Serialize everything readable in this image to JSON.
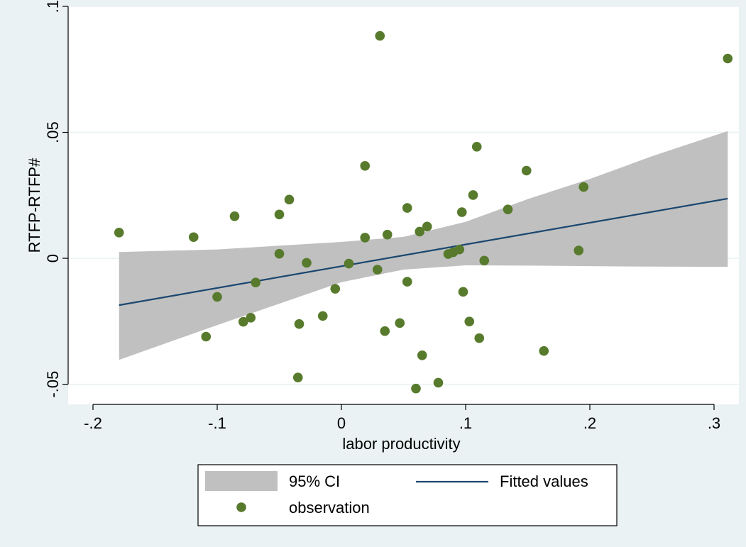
{
  "chart_data": {
    "type": "scatter",
    "title": "",
    "xlabel": "labor productivity",
    "ylabel": "RTFP-RTFP#",
    "xlim": [
      -0.22,
      0.32
    ],
    "ylim": [
      -0.058,
      0.1
    ],
    "xticks": [
      {
        "value": -0.2,
        "label": "-.2"
      },
      {
        "value": -0.1,
        "label": "-.1"
      },
      {
        "value": 0,
        "label": "0"
      },
      {
        "value": 0.1,
        "label": ".1"
      },
      {
        "value": 0.2,
        "label": ".2"
      },
      {
        "value": 0.3,
        "label": ".3"
      }
    ],
    "yticks": [
      {
        "value": -0.05,
        "label": "-.05"
      },
      {
        "value": 0,
        "label": "0"
      },
      {
        "value": 0.05,
        "label": ".05"
      },
      {
        "value": 0.1,
        "label": ".1"
      }
    ],
    "grid": "horizontal",
    "legend": {
      "placement": "bottom",
      "entries": [
        {
          "key": "ci",
          "label": "95% CI"
        },
        {
          "key": "fit",
          "label": "Fitted values"
        },
        {
          "key": "obs",
          "label": "observation"
        }
      ]
    },
    "colors": {
      "outer_background": "#eaf2f3",
      "plot_background": "#ffffff",
      "gridline": "#eaf2f3",
      "points": "#577a2c",
      "fit_line": "#1a476f",
      "ci_band": "#c0c0c0"
    },
    "fit": {
      "x": [
        -0.179,
        0.311
      ],
      "y": [
        -0.0186,
        0.0237
      ]
    },
    "ci": {
      "x": [
        -0.179,
        -0.1,
        0.0,
        0.05,
        0.1,
        0.15,
        0.2,
        0.25,
        0.311
      ],
      "lower": [
        -0.0403,
        -0.0265,
        -0.0095,
        -0.0045,
        -0.0028,
        -0.0029,
        -0.0031,
        -0.0033,
        -0.0034
      ],
      "upper": [
        0.0025,
        0.0035,
        0.0065,
        0.0085,
        0.0145,
        0.0235,
        0.0315,
        0.0405,
        0.0505
      ]
    },
    "points": [
      {
        "x": -0.179,
        "y": 0.0102
      },
      {
        "x": -0.119,
        "y": 0.0084
      },
      {
        "x": -0.109,
        "y": -0.0311
      },
      {
        "x": -0.1,
        "y": -0.0153
      },
      {
        "x": -0.086,
        "y": 0.0167
      },
      {
        "x": -0.079,
        "y": -0.0252
      },
      {
        "x": -0.073,
        "y": -0.0236
      },
      {
        "x": -0.069,
        "y": -0.0096
      },
      {
        "x": -0.05,
        "y": 0.0174
      },
      {
        "x": -0.05,
        "y": 0.0018
      },
      {
        "x": -0.042,
        "y": 0.0233
      },
      {
        "x": -0.035,
        "y": -0.0473
      },
      {
        "x": -0.034,
        "y": -0.0261
      },
      {
        "x": -0.028,
        "y": -0.0018
      },
      {
        "x": -0.015,
        "y": -0.0229
      },
      {
        "x": -0.005,
        "y": -0.0121
      },
      {
        "x": 0.006,
        "y": -0.0021
      },
      {
        "x": 0.019,
        "y": 0.0367
      },
      {
        "x": 0.019,
        "y": 0.0082
      },
      {
        "x": 0.029,
        "y": -0.0045
      },
      {
        "x": 0.031,
        "y": 0.0883
      },
      {
        "x": 0.035,
        "y": -0.0289
      },
      {
        "x": 0.037,
        "y": 0.0094
      },
      {
        "x": 0.047,
        "y": -0.0257
      },
      {
        "x": 0.053,
        "y": 0.02
      },
      {
        "x": 0.053,
        "y": -0.0093
      },
      {
        "x": 0.06,
        "y": -0.0517
      },
      {
        "x": 0.063,
        "y": 0.0106
      },
      {
        "x": 0.065,
        "y": -0.0385
      },
      {
        "x": 0.069,
        "y": 0.0126
      },
      {
        "x": 0.078,
        "y": -0.0494
      },
      {
        "x": 0.086,
        "y": 0.0017
      },
      {
        "x": 0.09,
        "y": 0.0024
      },
      {
        "x": 0.095,
        "y": 0.0035
      },
      {
        "x": 0.097,
        "y": 0.0183
      },
      {
        "x": 0.098,
        "y": -0.0133
      },
      {
        "x": 0.103,
        "y": -0.0251
      },
      {
        "x": 0.106,
        "y": 0.0251
      },
      {
        "x": 0.109,
        "y": 0.0443
      },
      {
        "x": 0.111,
        "y": -0.0317
      },
      {
        "x": 0.115,
        "y": -0.0009
      },
      {
        "x": 0.134,
        "y": 0.0194
      },
      {
        "x": 0.149,
        "y": 0.0348
      },
      {
        "x": 0.163,
        "y": -0.0368
      },
      {
        "x": 0.191,
        "y": 0.0031
      },
      {
        "x": 0.195,
        "y": 0.0283
      },
      {
        "x": 0.311,
        "y": 0.0793
      }
    ]
  }
}
